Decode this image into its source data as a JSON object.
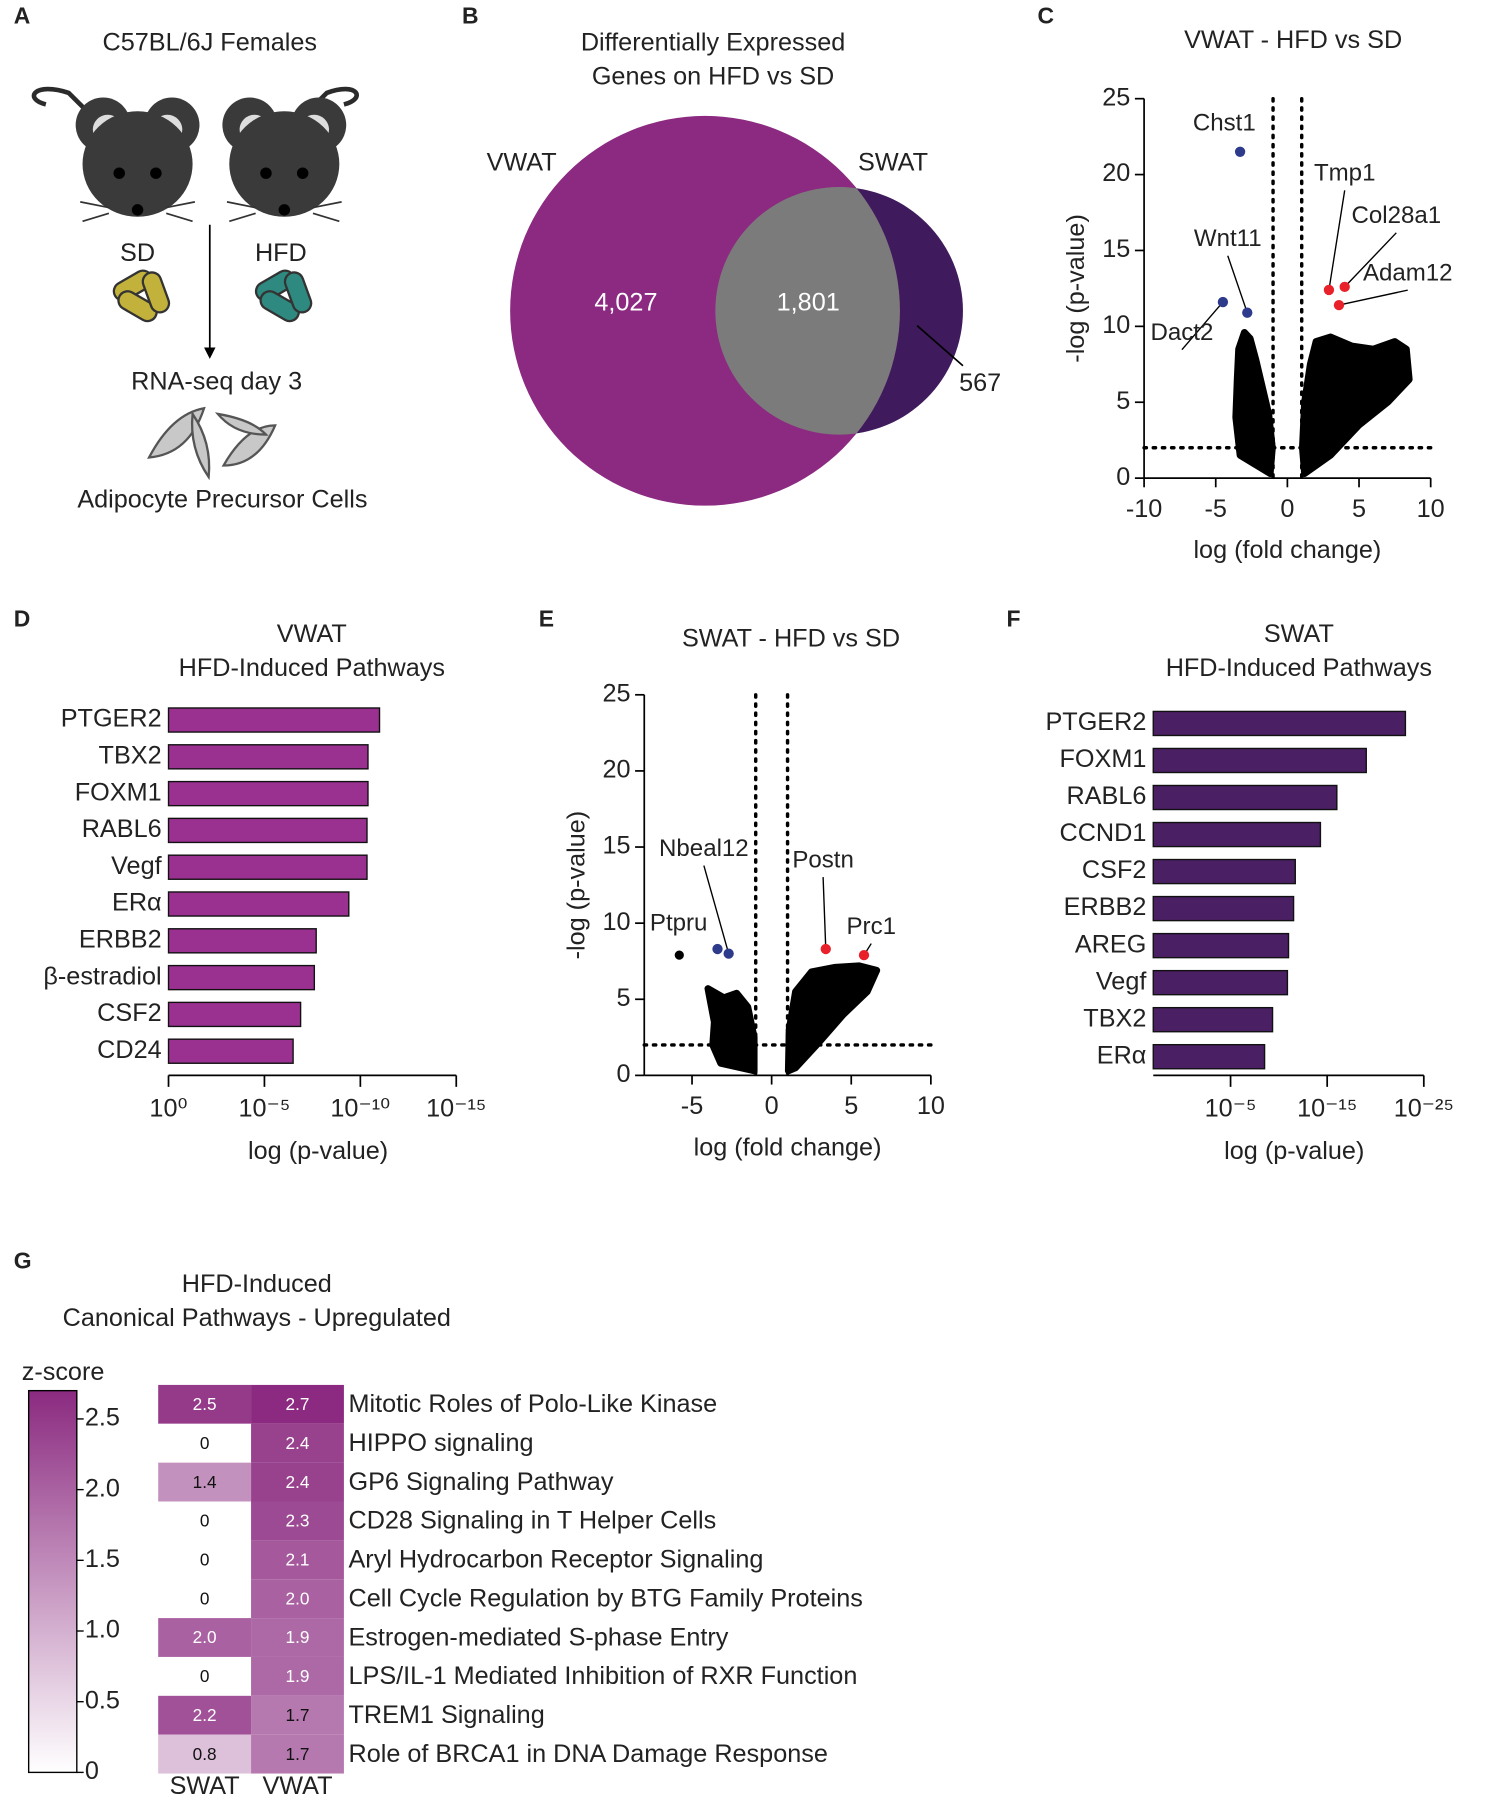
{
  "panel_labels": [
    "A",
    "B",
    "C",
    "D",
    "E",
    "F",
    "G"
  ],
  "diagram": {
    "title": "C57BL/6J Females",
    "diet_left": "SD",
    "diet_right": "HFD",
    "step": "RNA-seq day 3",
    "cells": "Adipocyte Precursor Cells"
  },
  "chart_data": [
    {
      "type": "venn",
      "title": [
        "Differentially Expressed",
        "Genes on HFD vs SD"
      ],
      "sets": [
        {
          "name": "VWAT",
          "color": "#8b2a80"
        },
        {
          "name": "SWAT",
          "color": "#3f1a5c"
        }
      ],
      "overlap_color": "#7b7b7b",
      "values": [
        4027,
        1801,
        567
      ],
      "value_labels": [
        "4,027",
        "1,801",
        "567"
      ]
    },
    {
      "type": "volcano",
      "title": "VWAT - HFD vs SD",
      "x_label": "log (fold change)",
      "y_label": "-log (p-value)",
      "xlim": [
        -10,
        10
      ],
      "xticks": [
        -10,
        -5,
        0,
        5,
        10
      ],
      "ylim": [
        0,
        25
      ],
      "yticks": [
        0,
        5,
        10,
        15,
        20,
        25
      ],
      "cutoff_x": [
        -1,
        1
      ],
      "cutoff_y": 2,
      "color": "#000000",
      "clouds": [
        {
          "x": [
            -1.2,
            -3.3,
            -3.6,
            -3.5,
            -3.4,
            -3.0,
            -2.6,
            -2.2,
            -1.8,
            -1.3,
            -1.05
          ],
          "y": [
            0.3,
            1.5,
            4.0,
            6.5,
            8.5,
            9.6,
            9.2,
            7.8,
            6.2,
            4.2,
            2.0
          ]
        },
        {
          "x": [
            1.05,
            1.2,
            1.6,
            2.0,
            3.0,
            4.5,
            6.0,
            7.5,
            8.3,
            8.5,
            7.0,
            5.0,
            3.0,
            1.2
          ],
          "y": [
            2.0,
            5.0,
            7.5,
            9.0,
            9.3,
            8.7,
            8.5,
            9.0,
            8.5,
            6.5,
            5.0,
            3.5,
            1.5,
            0.3
          ]
        }
      ],
      "outliers": {
        "x": [],
        "y": []
      },
      "labeled": [
        {
          "name": "Chst1",
          "x": -3.3,
          "y": 21.5,
          "color": "#2e3a8c"
        },
        {
          "name": "Wnt11",
          "x": -2.8,
          "y": 10.9,
          "color": "#2e3a8c"
        },
        {
          "name": "Dact2",
          "x": -4.5,
          "y": 11.6,
          "color": "#2e3a8c"
        },
        {
          "name": "Tmp1",
          "x": 2.9,
          "y": 12.4,
          "color": "#e8212a"
        },
        {
          "name": "Col28a1",
          "x": 4.0,
          "y": 12.6,
          "color": "#e8212a"
        },
        {
          "name": "Adam12",
          "x": 3.6,
          "y": 11.4,
          "color": "#e8212a"
        }
      ]
    },
    {
      "type": "bar",
      "title": [
        "VWAT",
        "HFD-Induced Pathways"
      ],
      "x_label": "log (p-value)",
      "log_scale": true,
      "color": "#9a3090",
      "xlim": [
        1,
        1e-15
      ],
      "xticks": [
        {
          "value": 1,
          "label": "10⁰"
        },
        {
          "value": 1e-05,
          "label": "10⁻⁵"
        },
        {
          "value": 1e-10,
          "label": "10⁻¹⁰"
        },
        {
          "value": 1e-15,
          "label": "10⁻¹⁵"
        }
      ],
      "categories": [
        "PTGER2",
        "TBX2",
        "FOXM1",
        "RABL6",
        "Vegf",
        "ERα",
        "ERBB2",
        "β-estradiol",
        "CSF2",
        "CD24"
      ],
      "values": [
        1e-11,
        4e-11,
        4e-11,
        4.5e-11,
        4.5e-11,
        4e-10,
        2e-08,
        2.5e-08,
        1.3e-07,
        3.2e-07
      ]
    },
    {
      "type": "volcano",
      "title": "SWAT - HFD vs SD",
      "x_label": "log (fold change)",
      "y_label": "-log (p-value)",
      "xlim": [
        -8,
        10
      ],
      "xticks": [
        -5,
        0,
        5,
        10
      ],
      "ylim": [
        0,
        25
      ],
      "yticks": [
        0,
        5,
        10,
        15,
        20,
        25
      ],
      "cutoff_x": [
        -1,
        1
      ],
      "cutoff_y": 2,
      "color": "#000000",
      "clouds": [
        {
          "x": [
            -1.1,
            -3.2,
            -3.7,
            -3.6,
            -4.0,
            -3.0,
            -2.2,
            -1.5,
            -1.1
          ],
          "y": [
            0.3,
            0.8,
            2.0,
            3.5,
            5.7,
            5.1,
            5.4,
            4.5,
            2.5
          ]
        },
        {
          "x": [
            1.05,
            1.1,
            1.5,
            2.5,
            4.0,
            5.5,
            6.6,
            6.0,
            4.5,
            3.0,
            1.5
          ],
          "y": [
            0.3,
            3.0,
            5.5,
            6.8,
            7.1,
            7.2,
            6.9,
            5.5,
            4.0,
            2.2,
            0.5
          ]
        }
      ],
      "outliers": {
        "x": [
          -5.8
        ],
        "y": [
          7.9
        ]
      },
      "labeled": [
        {
          "name": "Ptpru",
          "x": -3.4,
          "y": 8.3,
          "color": "#2e3a8c"
        },
        {
          "name": "Nbeal12",
          "x": -2.7,
          "y": 8.0,
          "color": "#2e3a8c"
        },
        {
          "name": "Postn",
          "x": 3.4,
          "y": 8.3,
          "color": "#e8212a"
        },
        {
          "name": "Prc1",
          "x": 5.8,
          "y": 7.9,
          "color": "#e8212a"
        }
      ]
    },
    {
      "type": "bar",
      "title": [
        "SWAT",
        "HFD-Induced Pathways"
      ],
      "x_label": "log (p-value)",
      "log_scale": true,
      "color": "#4a1f63",
      "xlim": [
        1000,
        1e-25
      ],
      "xticks": [
        {
          "value": 1e-05,
          "label": "10⁻⁵"
        },
        {
          "value": 1e-15,
          "label": "10⁻¹⁵"
        },
        {
          "value": 1e-25,
          "label": "10⁻²⁵"
        }
      ],
      "categories": [
        "PTGER2",
        "FOXM1",
        "RABL6",
        "CCND1",
        "CSF2",
        "ERBB2",
        "AREG",
        "Vegf",
        "TBX2",
        "ERα"
      ],
      "values": [
        8e-24,
        9e-20,
        1e-16,
        5e-15,
        2e-12,
        3e-12,
        1e-11,
        1.3e-11,
        4.5e-10,
        3e-09
      ]
    },
    {
      "type": "heatmap",
      "title": [
        "HFD-Induced",
        "Canonical Pathways - Upregulated"
      ],
      "colorbar_label": "z-score",
      "zlim": [
        0,
        2.7
      ],
      "low_color": "#ffffff",
      "high_color": "#8b2a80",
      "zticks": [
        0,
        0.5,
        {
          "value": 1,
          "label": "1.0"
        },
        1.5,
        {
          "value": 2,
          "label": "2.0"
        },
        2.5
      ],
      "rows": [
        "Mitotic Roles of Polo-Like Kinase",
        "HIPPO signaling",
        "GP6 Signaling Pathway",
        "CD28 Signaling in T Helper Cells",
        "Aryl Hydrocarbon Receptor Signaling",
        "Cell Cycle Regulation by BTG Family Proteins",
        "Estrogen-mediated S-phase Entry",
        "LPS/IL-1 Mediated Inhibition of RXR Function",
        "TREM1 Signaling",
        "Role of BRCA1 in DNA Damage Response"
      ],
      "series": [
        {
          "name": "SWAT",
          "values": [
            2.5,
            0,
            1.4,
            0,
            0,
            0,
            2,
            0,
            2.2,
            0.8
          ],
          "value_labels": [
            "2.5",
            "0",
            "1.4",
            "0",
            "0",
            "0",
            "2.0",
            "0",
            "2.2",
            "0.8"
          ]
        },
        {
          "name": "VWAT",
          "values": [
            2.7,
            2.4,
            2.4,
            2.3,
            2.1,
            2,
            1.9,
            1.9,
            1.7,
            1.7
          ],
          "value_labels": [
            "2.7",
            "2.4",
            "2.4",
            "2.3",
            "2.1",
            "2.0",
            "1.9",
            "1.9",
            "1.7",
            "1.7"
          ]
        }
      ]
    }
  ]
}
